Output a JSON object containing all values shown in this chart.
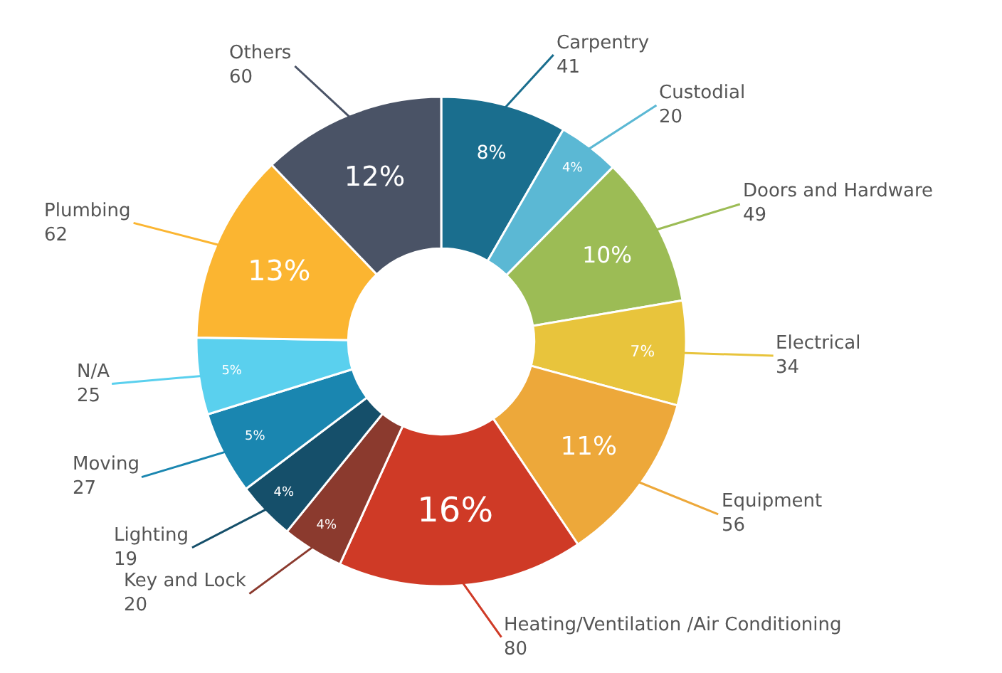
{
  "chart_data": {
    "type": "donut",
    "categories": [
      "Carpentry",
      "Custodial",
      "Doors and Hardware",
      "Electrical",
      "Equipment",
      "Heating/Ventilation /Air Conditioning",
      "Key and Lock",
      "Lighting",
      "Moving",
      "N/A",
      "Plumbing",
      "Others"
    ],
    "values": [
      41,
      20,
      49,
      34,
      56,
      80,
      20,
      19,
      27,
      25,
      62,
      60
    ],
    "colors": [
      "#1a6e8e",
      "#5bb8d4",
      "#9cbc55",
      "#e8c43c",
      "#eda83a",
      "#cf3a26",
      "#8b3a2e",
      "#154f6a",
      "#1a86b0",
      "#5ad0ee",
      "#fbb531",
      "#4a5366"
    ],
    "value_labels": [
      "41",
      "20",
      "49",
      "34",
      "56",
      "80",
      "20",
      "19",
      "27",
      "25",
      "62",
      "60"
    ],
    "annotations": [
      "8%",
      "4%",
      "10%",
      "7%",
      "11%",
      "16%",
      "4%",
      "4%",
      "5%",
      "5%",
      "13%",
      "12%"
    ],
    "legend": false
  }
}
